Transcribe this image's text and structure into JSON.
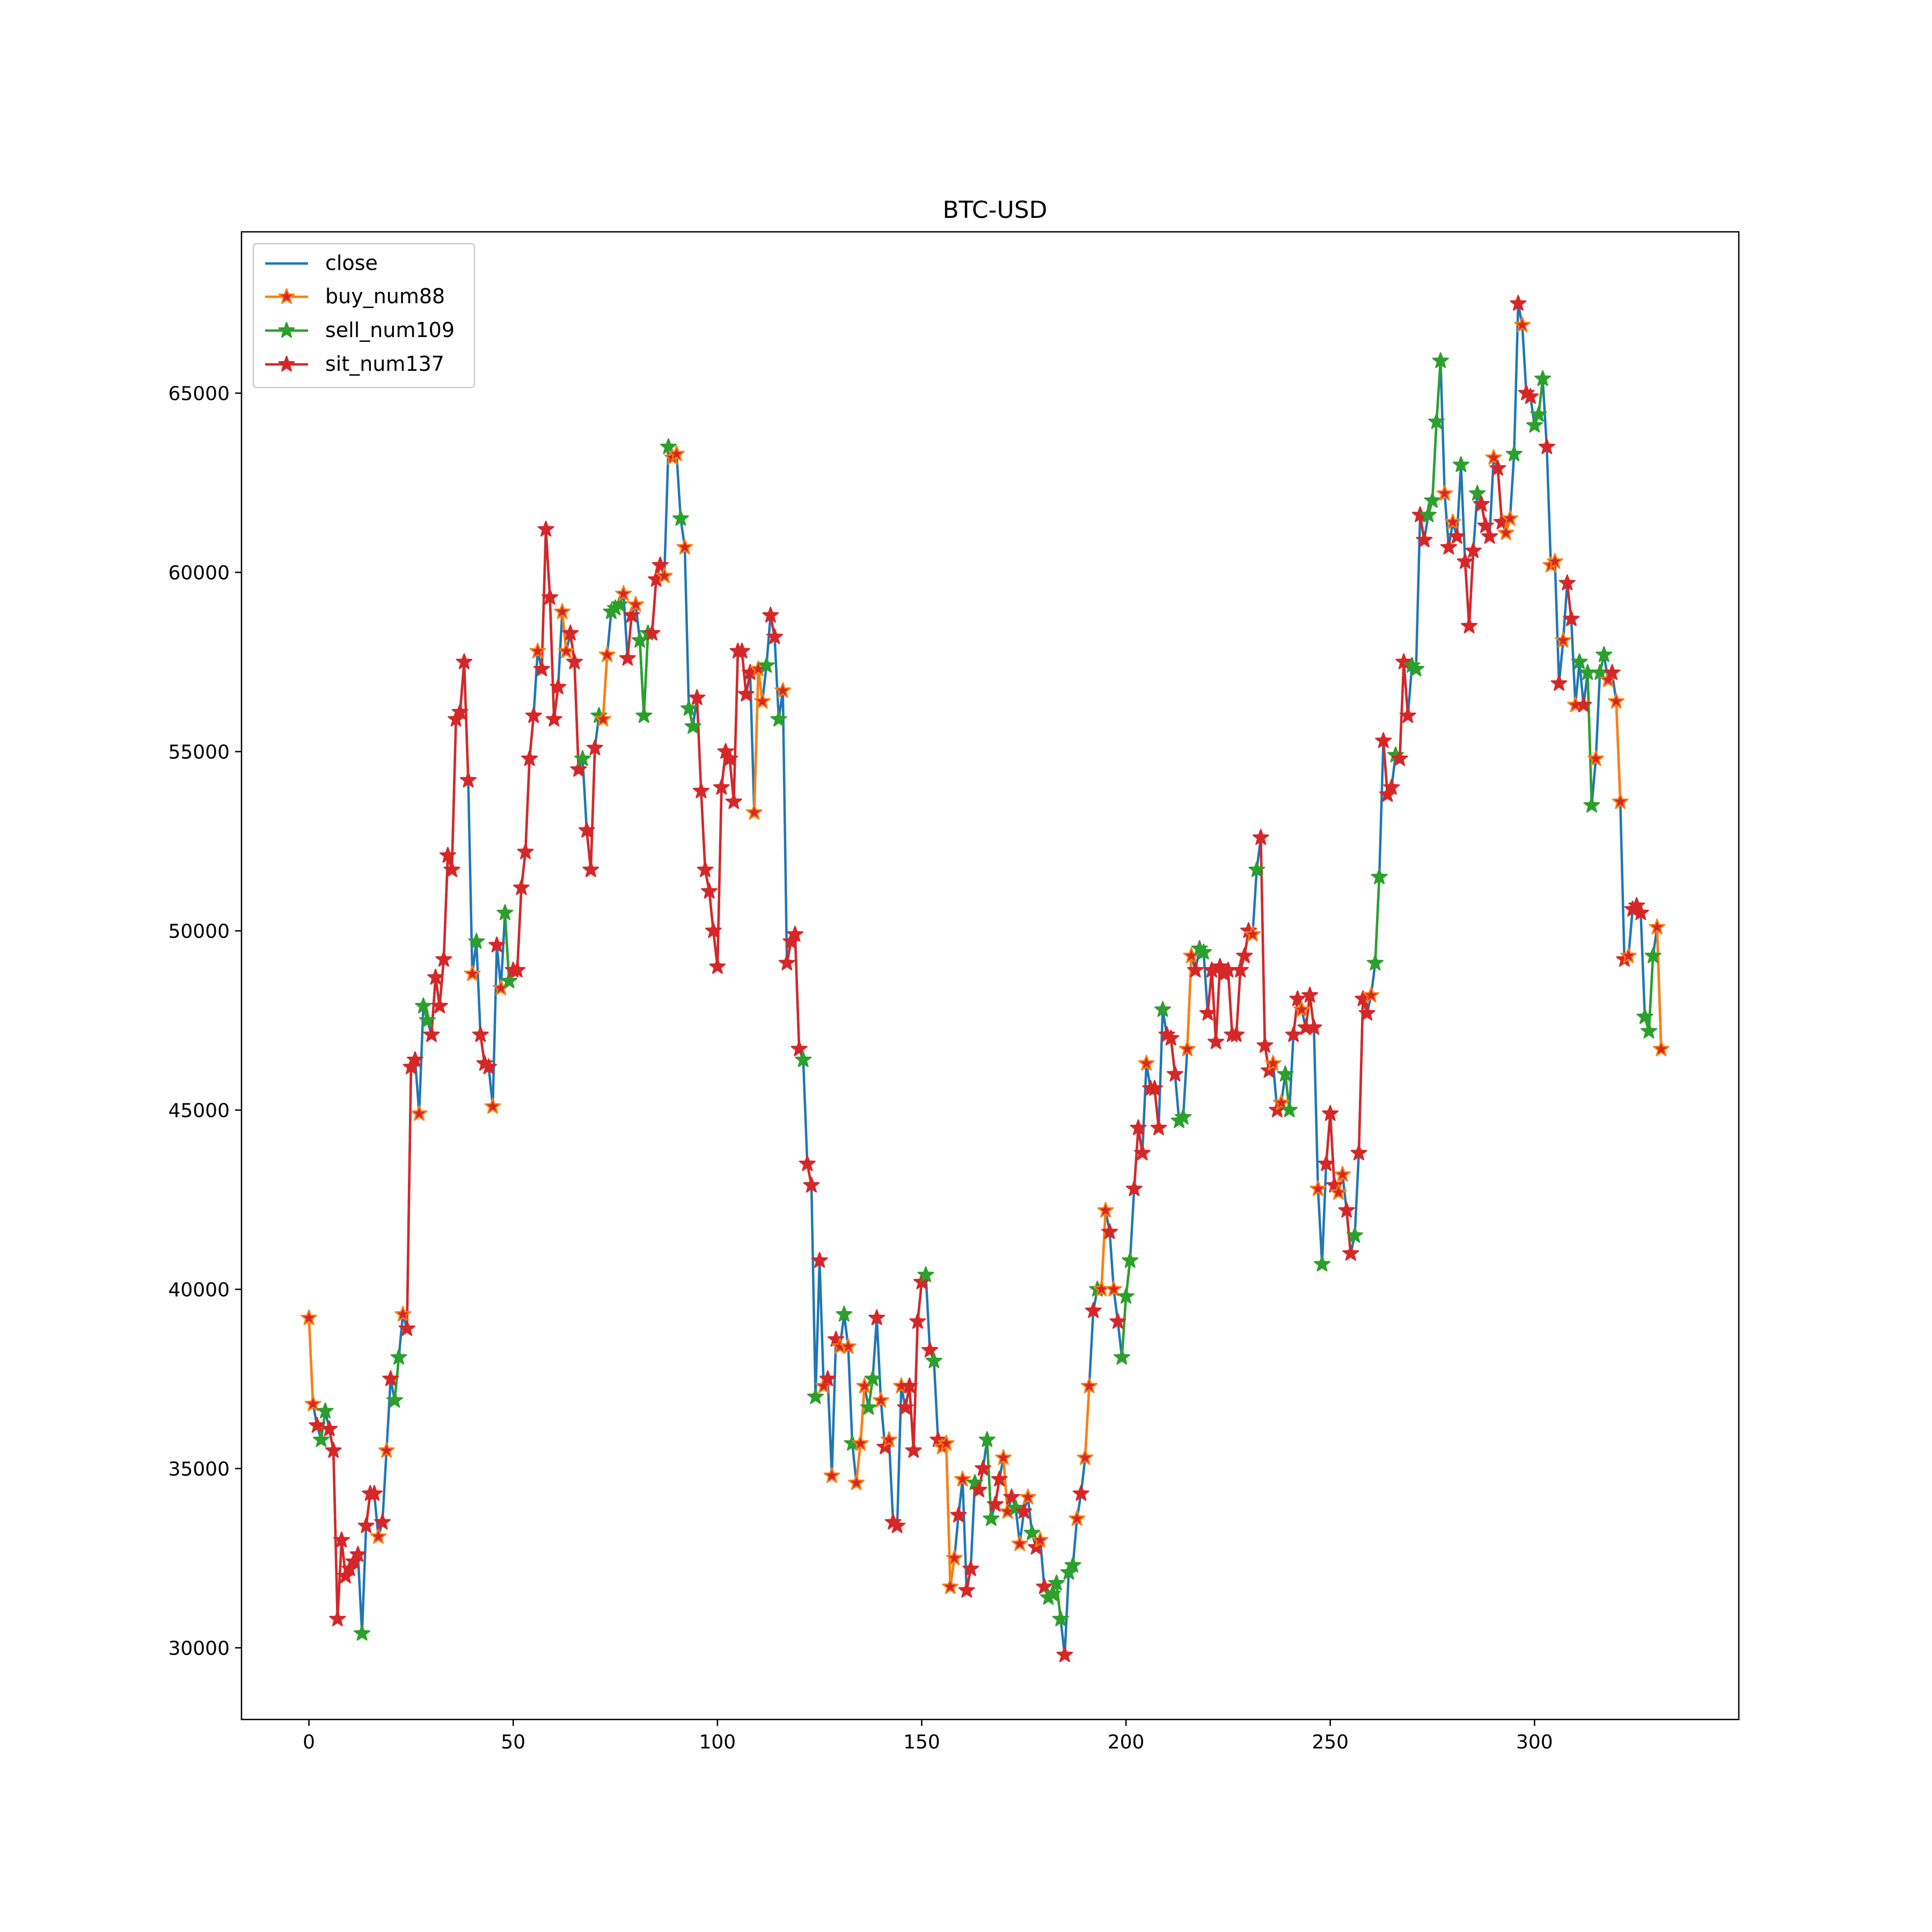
{
  "chart_data": {
    "type": "line",
    "title": "BTC-USD",
    "xlabel": "",
    "ylabel": "",
    "xlim": [
      -16.5,
      350
    ],
    "ylim": [
      28000,
      69500
    ],
    "xticks": [
      0,
      50,
      100,
      150,
      200,
      250,
      300
    ],
    "yticks": [
      30000,
      35000,
      40000,
      45000,
      50000,
      55000,
      60000,
      65000
    ],
    "grid": false,
    "legend": {
      "position": "top-left",
      "entries": [
        "close",
        "buy_num88",
        "sell_num109",
        "sit_num137"
      ]
    },
    "colors": {
      "close": "#1f77b4",
      "buy": "#ff7f0e",
      "sell": "#2ca02c",
      "sit": "#d62728"
    },
    "close": [
      39200,
      36800,
      36200,
      35800,
      36600,
      36100,
      35500,
      30800,
      33000,
      32000,
      32200,
      32400,
      32600,
      30400,
      33400,
      34300,
      34300,
      33100,
      33500,
      35500,
      37500,
      36900,
      38100,
      39300,
      38900,
      46200,
      46400,
      44900,
      47900,
      47500,
      47100,
      48700,
      47900,
      49200,
      52100,
      51700,
      55900,
      56100,
      57500,
      54200,
      48800,
      49700,
      47100,
      46300,
      46200,
      45100,
      49600,
      48400,
      50500,
      48600,
      48900,
      48900,
      51200,
      52200,
      54800,
      56000,
      57800,
      57300,
      61200,
      59300,
      55900,
      56800,
      58900,
      57800,
      58300,
      57500,
      54500,
      54800,
      52800,
      51700,
      55100,
      56000,
      55900,
      57700,
      58900,
      59000,
      59100,
      59400,
      57600,
      58800,
      59100,
      58100,
      56000,
      58300,
      58300,
      59800,
      60200,
      59900,
      63500,
      63200,
      63300,
      61500,
      60700,
      56200,
      55700,
      56500,
      53900,
      51700,
      51100,
      50000,
      49000,
      54000,
      55000,
      54800,
      53600,
      57800,
      57800,
      56600,
      57200,
      53300,
      57300,
      56400,
      57400,
      58800,
      58200,
      55900,
      56700,
      49100,
      49700,
      49900,
      46700,
      46400,
      43500,
      42900,
      37000,
      40800,
      37300,
      37500,
      34800,
      38600,
      38400,
      39300,
      38400,
      35700,
      34600,
      35700,
      37300,
      36700,
      37500,
      39200,
      36900,
      35600,
      35800,
      33500,
      33400,
      37300,
      36700,
      37300,
      35500,
      39100,
      40200,
      40400,
      38300,
      38000,
      35800,
      35600,
      35700,
      31700,
      32500,
      33700,
      34700,
      31600,
      32200,
      34600,
      34400,
      35000,
      35800,
      33600,
      34000,
      34700,
      35300,
      33800,
      34200,
      33900,
      32900,
      33800,
      34200,
      33200,
      32800,
      33000,
      31700,
      31400,
      31500,
      31800,
      30800,
      29800,
      32100,
      32300,
      33600,
      34300,
      35300,
      37300,
      39400,
      40000,
      40000,
      42200,
      41600,
      40000,
      39100,
      38100,
      39800,
      40800,
      42800,
      44500,
      43800,
      46300,
      45600,
      45600,
      44500,
      47800,
      47100,
      47000,
      46000,
      44700,
      44800,
      46700,
      49300,
      48900,
      49500,
      49400,
      47700,
      48900,
      46900,
      49000,
      48800,
      48900,
      47100,
      47100,
      48900,
      49300,
      50000,
      49900,
      51700,
      52600,
      46800,
      46100,
      46300,
      45000,
      45200,
      46000,
      45000,
      47100,
      48100,
      47800,
      47300,
      48200,
      47300,
      42800,
      40700,
      43500,
      44900,
      42900,
      42700,
      43200,
      42200,
      41000,
      41500,
      43800,
      48100,
      47700,
      48200,
      49100,
      51500,
      55300,
      53800,
      54000,
      54900,
      54800,
      57500,
      56000,
      57400,
      57300,
      61600,
      60900,
      61600,
      62000,
      64200,
      65900,
      62200,
      60700,
      61400,
      61000,
      63000,
      60300,
      58500,
      60600,
      62200,
      61900,
      61300,
      61000,
      63200,
      62900,
      61400,
      61100,
      61500,
      63300,
      67500,
      66900,
      65000,
      64900,
      64100,
      64400,
      65400,
      63500,
      60200,
      60300,
      56900,
      58100,
      59700,
      58700,
      56300,
      57500,
      56300,
      57200,
      53500,
      54800,
      57200,
      57700,
      57000,
      57200,
      56400,
      53600,
      49200,
      49300,
      50600,
      50700,
      50500,
      47600,
      47200,
      49300,
      50100,
      46700
    ],
    "signal": [
      "buy",
      "buy",
      "sit",
      "sell",
      "sell",
      "sit",
      "sit",
      "sit",
      "sit",
      "sit",
      "sit",
      "sit",
      "sit",
      "sell",
      "sit",
      "sit",
      "sit",
      "buy",
      "sit",
      "buy",
      "sit",
      "sell",
      "sell",
      "buy",
      "sit",
      "sit",
      "sit",
      "buy",
      "sell",
      "sell",
      "sit",
      "sit",
      "sit",
      "sit",
      "sit",
      "sit",
      "sit",
      "sit",
      "sit",
      "sit",
      "buy",
      "sell",
      "sit",
      "sit",
      "sit",
      "buy",
      "sit",
      "buy",
      "sell",
      "sell",
      "sit",
      "sit",
      "sit",
      "sit",
      "sit",
      "sit",
      "buy",
      "sit",
      "sit",
      "sit",
      "sit",
      "sit",
      "buy",
      "buy",
      "sit",
      "sit",
      "sit",
      "sell",
      "sit",
      "sit",
      "sit",
      "sell",
      "buy",
      "buy",
      "sell",
      "sell",
      "sell",
      "buy",
      "sit",
      "sit",
      "buy",
      "sell",
      "sell",
      "sell",
      "sit",
      "sit",
      "sit",
      "buy",
      "sell",
      "buy",
      "buy",
      "sell",
      "buy",
      "sell",
      "sell",
      "sit",
      "sit",
      "sit",
      "sit",
      "sit",
      "sit",
      "sit",
      "sit",
      "sit",
      "sit",
      "sit",
      "sit",
      "sit",
      "sit",
      "buy",
      "buy",
      "buy",
      "sell",
      "sit",
      "sit",
      "sell",
      "buy",
      "sit",
      "sit",
      "sit",
      "sit",
      "sell",
      "sit",
      "sit",
      "sell",
      "sit",
      "buy",
      "sit",
      "buy",
      "sit",
      "buy",
      "sell",
      "buy",
      "sell",
      "buy",
      "buy",
      "buy",
      "sell",
      "sell",
      "sit",
      "buy",
      "sit",
      "buy",
      "sit",
      "sit",
      "buy",
      "sit",
      "sit",
      "sit",
      "sit",
      "sit",
      "sell",
      "sit",
      "sell",
      "sit",
      "buy",
      "buy",
      "buy",
      "buy",
      "sit",
      "buy",
      "sit",
      "sit",
      "sell",
      "sit",
      "sit",
      "sell",
      "sell",
      "sit",
      "sit",
      "buy",
      "buy",
      "sit",
      "sell",
      "buy",
      "sit",
      "buy",
      "sell",
      "sit",
      "buy",
      "sit",
      "sell",
      "sell",
      "sell",
      "sell",
      "sit",
      "sell",
      "sell",
      "buy",
      "sit",
      "buy",
      "buy",
      "sit",
      "sell",
      "buy",
      "buy",
      "sit",
      "buy",
      "sit",
      "sell",
      "sell",
      "sell",
      "sit",
      "sit",
      "sit",
      "buy",
      "sit",
      "sit",
      "sit",
      "sell",
      "sit",
      "sit",
      "sit",
      "sell",
      "sell",
      "buy",
      "buy",
      "sit",
      "sell",
      "sell",
      "sit",
      "sit",
      "sit",
      "sit",
      "sit",
      "sit",
      "sit",
      "sit",
      "sit",
      "sit",
      "sit",
      "buy",
      "sell",
      "sit",
      "sit",
      "sit",
      "buy",
      "sit",
      "buy",
      "sell",
      "sell",
      "sit",
      "sit",
      "buy",
      "sit",
      "sit",
      "sit",
      "buy",
      "sell",
      "sit",
      "sit",
      "sit",
      "buy",
      "buy",
      "sit",
      "sit",
      "sell",
      "sit",
      "sit",
      "sit",
      "buy",
      "sell",
      "sell",
      "sit",
      "sit",
      "sit",
      "sell",
      "sit",
      "sit",
      "sit",
      "sell",
      "sell",
      "sit",
      "sit",
      "sell",
      "sell",
      "sell",
      "sell",
      "buy",
      "sit",
      "buy",
      "sit",
      "sell",
      "sit",
      "sit",
      "sit",
      "sell",
      "sit",
      "sit",
      "sit",
      "buy",
      "sit",
      "sit",
      "buy",
      "buy",
      "sell",
      "sit",
      "buy",
      "sit",
      "sit",
      "sell",
      "sell",
      "sell",
      "sit",
      "buy",
      "buy",
      "sit",
      "buy",
      "sit",
      "sit",
      "buy",
      "sell",
      "sit",
      "sell",
      "sell",
      "buy",
      "sell",
      "sell",
      "buy",
      "sit",
      "buy",
      "buy",
      "sit",
      "buy",
      "sit",
      "sit",
      "sit",
      "sell",
      "sell",
      "sell",
      "buy",
      "buy",
      "buy",
      "sell",
      "sell",
      "sell"
    ]
  }
}
